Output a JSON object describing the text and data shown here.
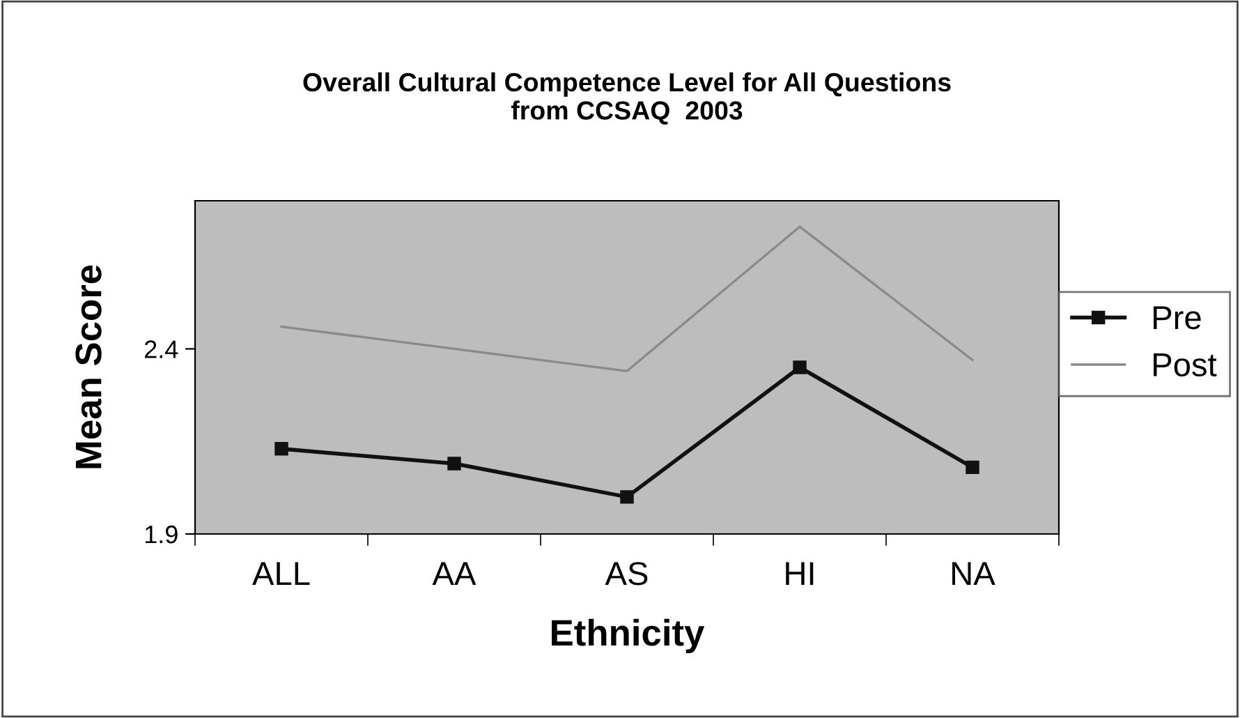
{
  "chart_data": {
    "type": "line",
    "title": "Overall Cultural Competence Level for All Questions\nfrom CCSAQ  2003",
    "xlabel": "Ethnicity",
    "ylabel": "Mean Score",
    "categories": [
      "ALL",
      "AA",
      "AS",
      "HI",
      "NA"
    ],
    "series": [
      {
        "name": "Pre",
        "color": "#111111",
        "values": [
          2.13,
          2.09,
          2.0,
          2.35,
          2.08
        ],
        "marker": "square"
      },
      {
        "name": "Post",
        "color": "#8a8a8a",
        "values": [
          2.46,
          2.4,
          2.34,
          2.73,
          2.37
        ],
        "marker": "none"
      }
    ],
    "ylim": [
      1.9,
      2.8
    ],
    "yticks": [
      1.9,
      2.4
    ],
    "grid": false,
    "legend": "right"
  }
}
